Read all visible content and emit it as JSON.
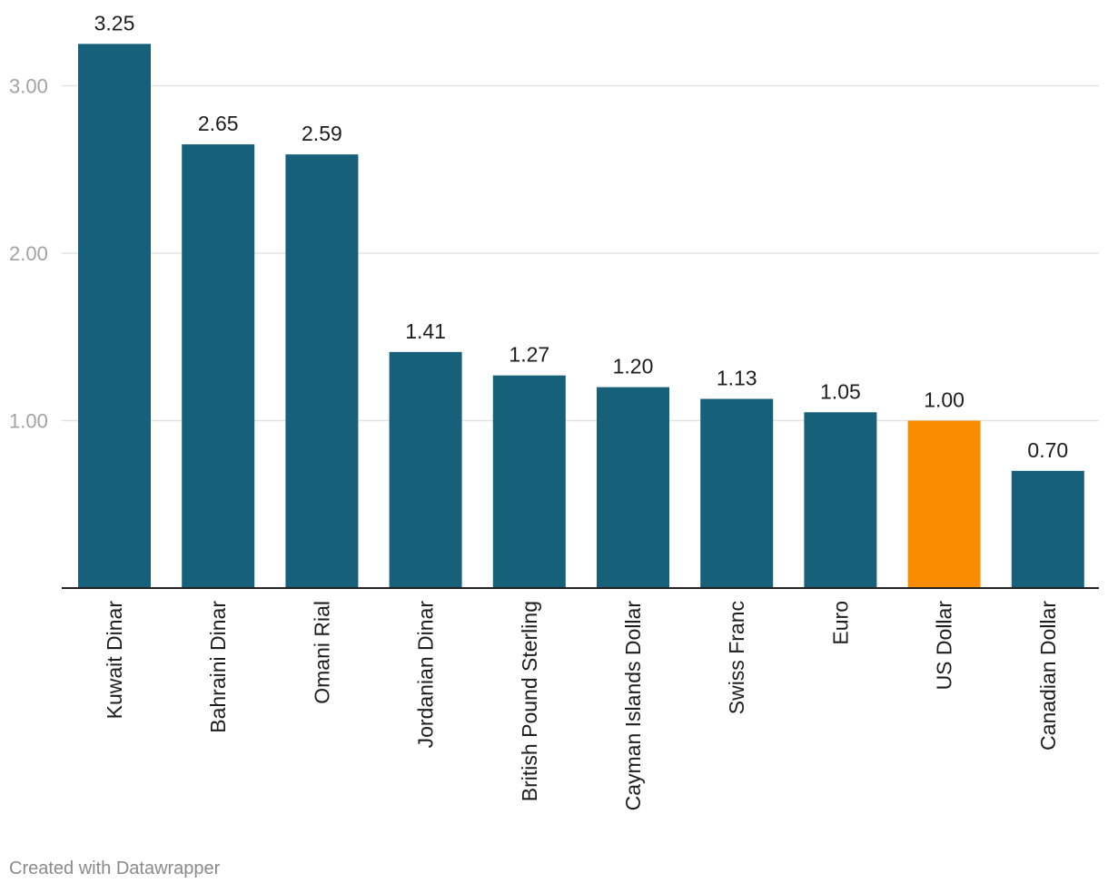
{
  "chart_data": {
    "type": "bar",
    "categories": [
      "Kuwait Dinar",
      "Bahraini Dinar",
      "Omani Rial",
      "Jordanian Dinar",
      "British Pound Sterling",
      "Cayman Islands Dollar",
      "Swiss Franc",
      "Euro",
      "US Dollar",
      "Canadian Dollar"
    ],
    "values": [
      3.25,
      2.65,
      2.59,
      1.41,
      1.27,
      1.2,
      1.13,
      1.05,
      1.0,
      0.7
    ],
    "value_labels": [
      "3.25",
      "2.65",
      "2.59",
      "1.41",
      "1.27",
      "1.20",
      "1.13",
      "1.05",
      "1.00",
      "0.70"
    ],
    "highlight_category": "US Dollar",
    "ylim": [
      0,
      3.25
    ],
    "yticks": [
      1,
      2,
      3
    ],
    "ytick_labels": [
      "1.00",
      "2.00",
      "3.00"
    ],
    "grid": true,
    "legend": "none",
    "title": "",
    "xlabel": "",
    "ylabel": "",
    "colors": {
      "bar": "#17607a",
      "highlight": "#fa8c00",
      "grid": "#e3e3e3",
      "baseline": "#222222"
    }
  },
  "footer": {
    "credit": "Created with Datawrapper"
  }
}
